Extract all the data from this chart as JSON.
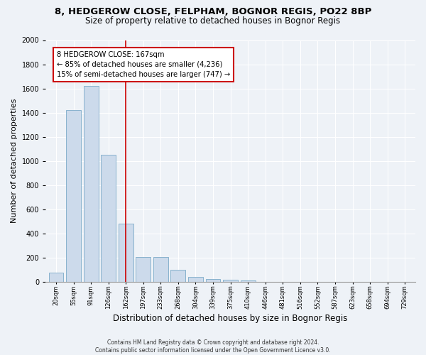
{
  "title1": "8, HEDGEROW CLOSE, FELPHAM, BOGNOR REGIS, PO22 8BP",
  "title2": "Size of property relative to detached houses in Bognor Regis",
  "xlabel": "Distribution of detached houses by size in Bognor Regis",
  "ylabel": "Number of detached properties",
  "categories": [
    "20sqm",
    "55sqm",
    "91sqm",
    "126sqm",
    "162sqm",
    "197sqm",
    "233sqm",
    "268sqm",
    "304sqm",
    "339sqm",
    "375sqm",
    "410sqm",
    "446sqm",
    "481sqm",
    "516sqm",
    "552sqm",
    "587sqm",
    "623sqm",
    "658sqm",
    "694sqm",
    "729sqm"
  ],
  "values": [
    75,
    1420,
    1620,
    1050,
    480,
    205,
    205,
    100,
    40,
    25,
    20,
    10,
    0,
    0,
    0,
    0,
    0,
    0,
    0,
    0,
    0
  ],
  "bar_color": "#ccdaeb",
  "bar_edge_color": "#7aaac8",
  "vline_x_index": 4,
  "vline_color": "#cc0000",
  "annotation_text": "8 HEDGEROW CLOSE: 167sqm\n← 85% of detached houses are smaller (4,236)\n15% of semi-detached houses are larger (747) →",
  "annotation_box_color": "white",
  "annotation_box_edge_color": "#cc0000",
  "ylim": [
    0,
    2000
  ],
  "yticks": [
    0,
    200,
    400,
    600,
    800,
    1000,
    1200,
    1400,
    1600,
    1800,
    2000
  ],
  "footnote": "Contains HM Land Registry data © Crown copyright and database right 2024.\nContains public sector information licensed under the Open Government Licence v3.0.",
  "bg_color": "#eef2f7",
  "grid_color": "white",
  "title1_fontsize": 9.5,
  "title2_fontsize": 8.5,
  "xlabel_fontsize": 8.5,
  "ylabel_fontsize": 8
}
